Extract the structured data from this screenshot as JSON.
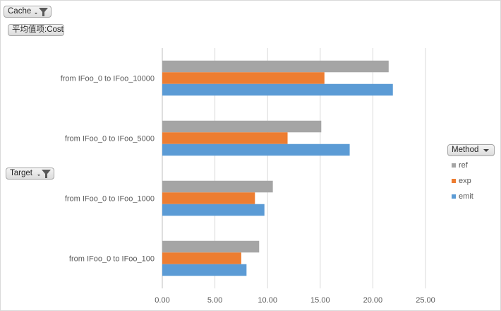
{
  "filters": {
    "cache_label": "Cache",
    "value_label": "平均值项:Cost",
    "target_label": "Target",
    "method_label": "Method"
  },
  "chart_data": {
    "type": "bar",
    "orientation": "horizontal",
    "categories": [
      "from IFoo_0 to IFoo_10000",
      "from IFoo_0 to IFoo_5000",
      "from IFoo_0 to IFoo_1000",
      "from IFoo_0 to IFoo_100"
    ],
    "series": [
      {
        "name": "ref",
        "color": "#a5a5a5",
        "values": [
          21.5,
          15.1,
          10.5,
          9.2
        ]
      },
      {
        "name": "exp",
        "color": "#ed7d31",
        "values": [
          15.4,
          11.9,
          8.8,
          7.5
        ]
      },
      {
        "name": "emit",
        "color": "#5b9bd5",
        "values": [
          21.9,
          17.8,
          9.7,
          8.0
        ]
      }
    ],
    "xlim": [
      0,
      25
    ],
    "x_ticks": [
      "0.00",
      "5.00",
      "10.00",
      "15.00",
      "20.00",
      "25.00"
    ],
    "grid": true,
    "legend_position": "right"
  }
}
